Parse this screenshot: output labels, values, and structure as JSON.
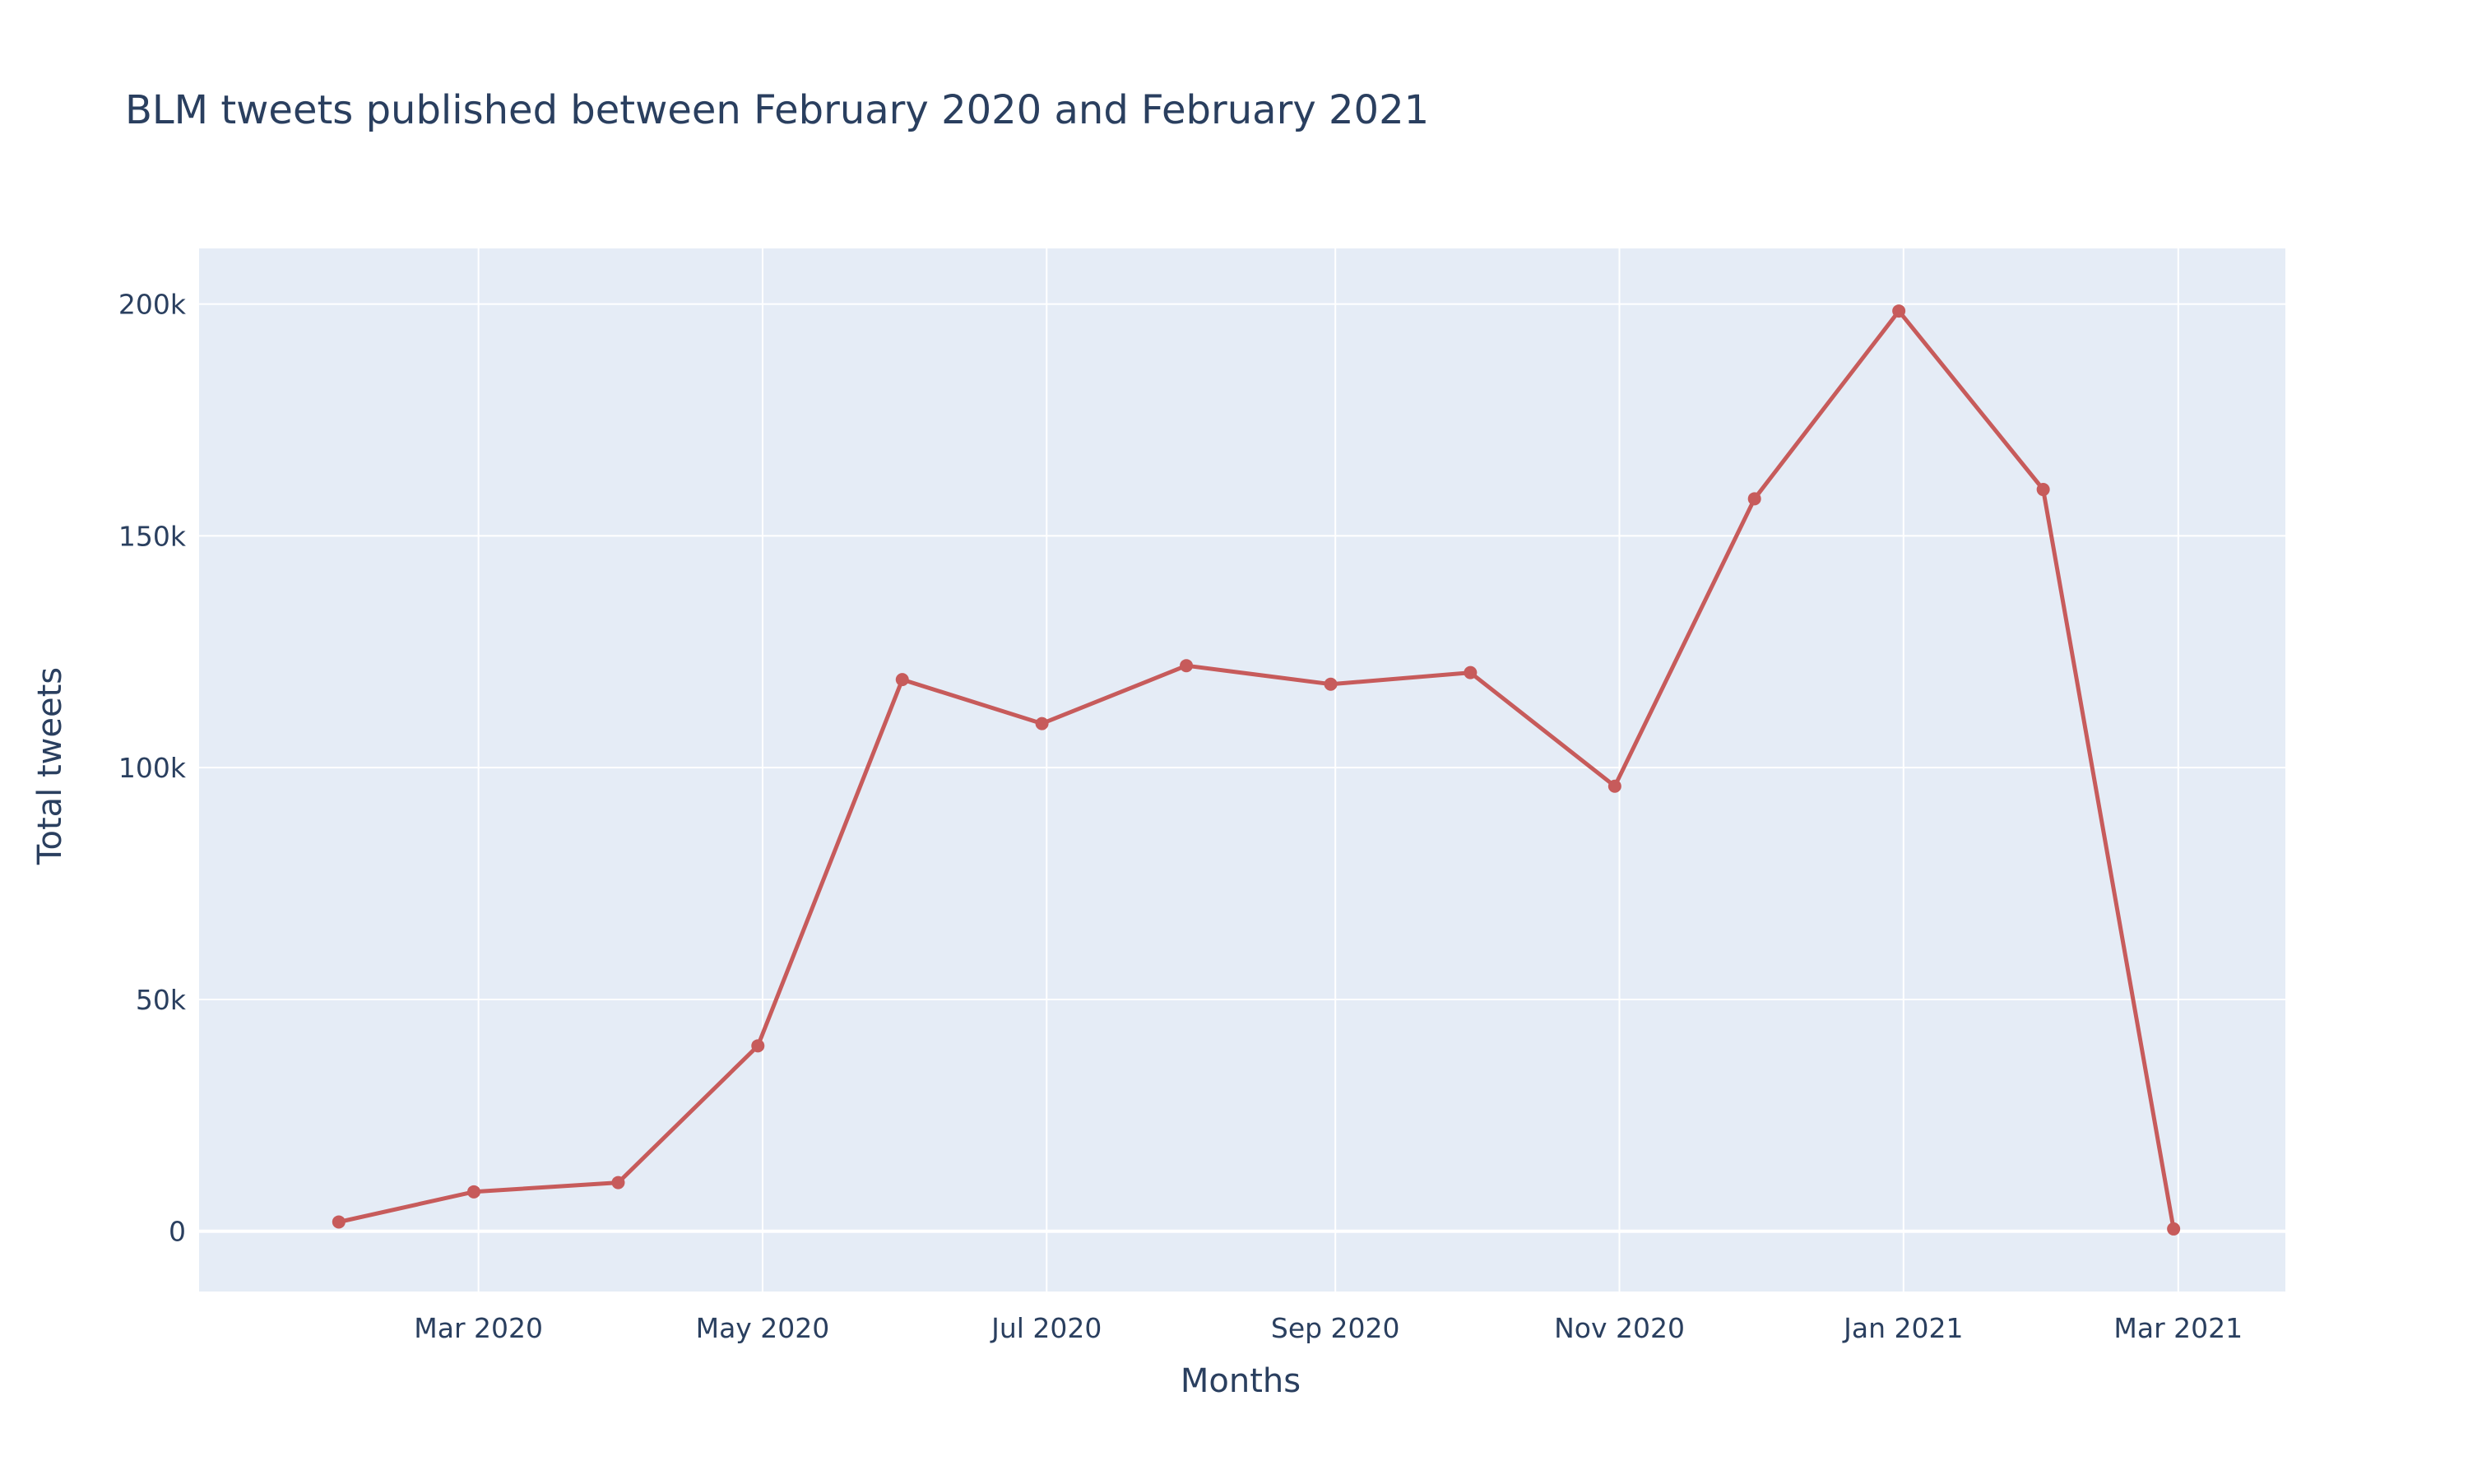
{
  "colors": {
    "plot_background": "#e5ecf6",
    "grid": "#ffffff",
    "text": "#2a3f5f",
    "series": "#c75b5b"
  },
  "chart_data": {
    "type": "line",
    "title": "BLM tweets published between February 2020 and February 2021",
    "xlabel": "Months",
    "ylabel": "Total tweets",
    "xlim": [
      "2020-01-01",
      "2021-03-24"
    ],
    "ylim": [
      -13000,
      212000
    ],
    "grid": true,
    "x_ticks": [
      {
        "date": "2020-03-01",
        "label": "Mar 2020"
      },
      {
        "date": "2020-05-01",
        "label": "May 2020"
      },
      {
        "date": "2020-07-01",
        "label": "Jul 2020"
      },
      {
        "date": "2020-09-01",
        "label": "Sep 2020"
      },
      {
        "date": "2020-11-01",
        "label": "Nov 2020"
      },
      {
        "date": "2021-01-01",
        "label": "Jan 2021"
      },
      {
        "date": "2021-03-01",
        "label": "Mar 2021"
      }
    ],
    "y_ticks": [
      {
        "value": 0,
        "label": "0"
      },
      {
        "value": 50000,
        "label": "50k"
      },
      {
        "value": 100000,
        "label": "100k"
      },
      {
        "value": 150000,
        "label": "150k"
      },
      {
        "value": 200000,
        "label": "200k"
      }
    ],
    "series": [
      {
        "x": [
          "2020-01-31",
          "2020-02-29",
          "2020-03-31",
          "2020-04-30",
          "2020-05-31",
          "2020-06-30",
          "2020-07-31",
          "2020-08-31",
          "2020-09-30",
          "2020-10-31",
          "2020-11-30",
          "2020-12-31",
          "2021-01-31",
          "2021-02-28"
        ],
        "values": [
          2000,
          8500,
          10500,
          40000,
          119000,
          109500,
          122000,
          118000,
          120500,
          96000,
          158000,
          198500,
          160000,
          500
        ]
      }
    ]
  }
}
